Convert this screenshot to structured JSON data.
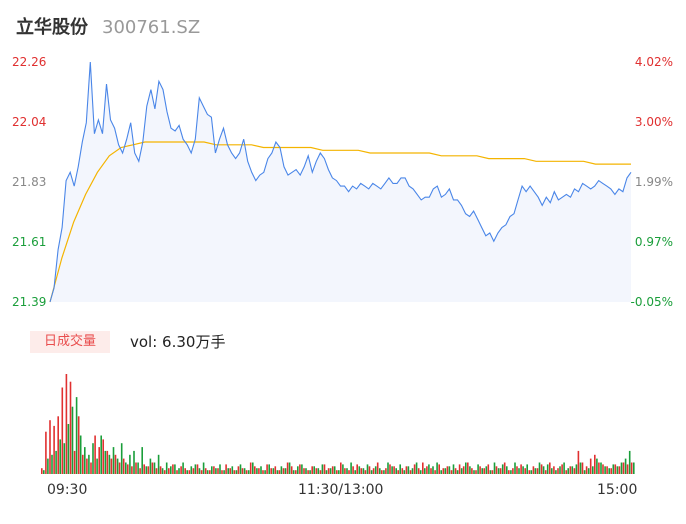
{
  "header": {
    "name": "立华股份",
    "code": "300761.SZ"
  },
  "colors": {
    "up": "#e03030",
    "down": "#1a9e3a",
    "price_line": "#4a86e8",
    "avg_line": "#f4b400",
    "area_fill": "#f3f6fd",
    "badge_bg": "#fdecea"
  },
  "price_axis": {
    "labels": [
      "22.26",
      "22.04",
      "21.83",
      "21.61",
      "21.39"
    ]
  },
  "pct_axis": {
    "labels": [
      "4.02%",
      "3.00%",
      "1.99%",
      "0.97%",
      "-0.05%"
    ]
  },
  "volume": {
    "badge": "日成交量",
    "text": "vol: 6.30万手"
  },
  "time_axis": {
    "labels": [
      "09:30",
      "11:30/13:00",
      "15:00"
    ]
  },
  "chart_data": {
    "type": "line",
    "title": "",
    "xlabel": "",
    "ylabel": "",
    "x_range": [
      "09:30",
      "15:00"
    ],
    "ylim": [
      21.39,
      22.26
    ],
    "pct_lim": [
      -0.05,
      4.02
    ],
    "series": [
      {
        "values": [
          21.39,
          21.44,
          21.58,
          21.66,
          21.83,
          21.86,
          21.81,
          21.88,
          21.97,
          22.04,
          22.26,
          22.0,
          22.05,
          22.0,
          22.18,
          22.05,
          22.02,
          21.96,
          21.93,
          21.98,
          22.04,
          21.93,
          21.9,
          21.97,
          22.1,
          22.16,
          22.09,
          22.19,
          22.16,
          22.08,
          22.02,
          22.01,
          22.03,
          21.98,
          21.96,
          21.93,
          21.98,
          22.13,
          22.1,
          22.07,
          22.06,
          21.93,
          21.98,
          22.02,
          21.96,
          21.93,
          21.91,
          21.93,
          21.98,
          21.9,
          21.86,
          21.83,
          21.85,
          21.86,
          21.91,
          21.93,
          21.97,
          21.95,
          21.88,
          21.85,
          21.86,
          21.87,
          21.85,
          21.88,
          21.92,
          21.86,
          21.9,
          21.93,
          21.91,
          21.87,
          21.84,
          21.83,
          21.81,
          21.81,
          21.79,
          21.81,
          21.8,
          21.82,
          21.81,
          21.8,
          21.82,
          21.81,
          21.8,
          21.82,
          21.84,
          21.82,
          21.82,
          21.84,
          21.84,
          21.81,
          21.8,
          21.78,
          21.76,
          21.77,
          21.77,
          21.8,
          21.81,
          21.77,
          21.78,
          21.8,
          21.76,
          21.76,
          21.74,
          21.71,
          21.7,
          21.72,
          21.69,
          21.66,
          21.63,
          21.64,
          21.61,
          21.64,
          21.66,
          21.67,
          21.7,
          21.71,
          21.76,
          21.81,
          21.79,
          21.81,
          21.79,
          21.77,
          21.74,
          21.77,
          21.75,
          21.79,
          21.76,
          21.77,
          21.78,
          21.77,
          21.8,
          21.79,
          21.82,
          21.81,
          21.8,
          21.81,
          21.83,
          21.82,
          21.81,
          21.8,
          21.78,
          21.8,
          21.79,
          21.84,
          21.86
        ]
      },
      {
        "values": [
          21.39,
          21.55,
          21.68,
          21.78,
          21.86,
          21.92,
          21.95,
          21.96,
          21.97,
          21.97,
          21.97,
          21.97,
          21.97,
          21.97,
          21.96,
          21.96,
          21.96,
          21.96,
          21.95,
          21.95,
          21.95,
          21.95,
          21.95,
          21.94,
          21.94,
          21.94,
          21.94,
          21.93,
          21.93,
          21.93,
          21.93,
          21.93,
          21.93,
          21.92,
          21.92,
          21.92,
          21.92,
          21.91,
          21.91,
          21.91,
          21.91,
          21.9,
          21.9,
          21.9,
          21.9,
          21.9,
          21.89,
          21.89,
          21.89,
          21.89
        ]
      }
    ],
    "volume_series": [
      {
        "name": "up",
        "values": [
          3,
          22,
          28,
          25,
          30,
          45,
          52,
          48,
          12,
          30,
          10,
          8,
          6,
          20,
          14,
          18,
          12,
          8,
          10,
          6,
          8,
          5,
          4,
          6,
          3,
          5,
          4,
          6,
          3,
          4,
          2,
          3,
          5,
          2,
          4,
          3,
          2,
          3,
          5,
          2,
          3,
          2,
          4,
          3,
          2,
          5,
          3,
          2,
          4,
          3,
          2,
          6,
          4,
          3,
          2,
          5,
          3,
          4,
          2,
          3,
          6,
          4,
          2,
          5,
          3,
          2,
          4,
          3,
          2,
          5,
          3,
          4,
          2,
          6,
          3,
          2,
          4,
          5,
          3,
          2,
          4,
          3,
          6,
          2,
          3,
          5,
          4,
          2,
          3,
          4,
          2,
          5,
          3,
          6,
          4,
          3,
          2,
          5,
          3,
          4,
          2,
          3,
          5,
          4,
          6,
          3,
          2,
          4,
          3,
          5,
          2,
          4,
          3,
          6,
          2,
          3,
          4,
          5,
          3,
          2,
          4,
          3,
          5,
          2,
          6,
          4,
          3,
          5,
          2,
          4,
          3,
          12,
          6,
          4,
          8,
          10,
          6,
          5,
          4,
          3,
          5,
          4,
          6,
          5,
          6
        ]
      },
      {
        "name": "down",
        "values": [
          2,
          8,
          10,
          12,
          18,
          16,
          26,
          35,
          40,
          20,
          14,
          10,
          16,
          8,
          20,
          12,
          10,
          14,
          8,
          16,
          6,
          10,
          12,
          6,
          14,
          4,
          8,
          6,
          10,
          3,
          6,
          4,
          5,
          3,
          6,
          2,
          4,
          5,
          3,
          6,
          2,
          4,
          3,
          5,
          2,
          3,
          4,
          2,
          5,
          3,
          2,
          6,
          3,
          4,
          2,
          5,
          3,
          2,
          4,
          3,
          6,
          2,
          4,
          5,
          3,
          2,
          4,
          3,
          5,
          2,
          3,
          4,
          2,
          5,
          3,
          6,
          2,
          4,
          3,
          5,
          2,
          4,
          3,
          2,
          6,
          4,
          3,
          5,
          2,
          4,
          3,
          6,
          2,
          3,
          5,
          4,
          6,
          2,
          3,
          4,
          5,
          2,
          3,
          6,
          4,
          2,
          5,
          3,
          4,
          2,
          6,
          3,
          5,
          4,
          2,
          6,
          3,
          4,
          5,
          2,
          3,
          6,
          4,
          5,
          3,
          2,
          4,
          6,
          3,
          4,
          5,
          6,
          2,
          3,
          4,
          8,
          6,
          4,
          3,
          5,
          4,
          6,
          8,
          12,
          6
        ]
      }
    ]
  }
}
